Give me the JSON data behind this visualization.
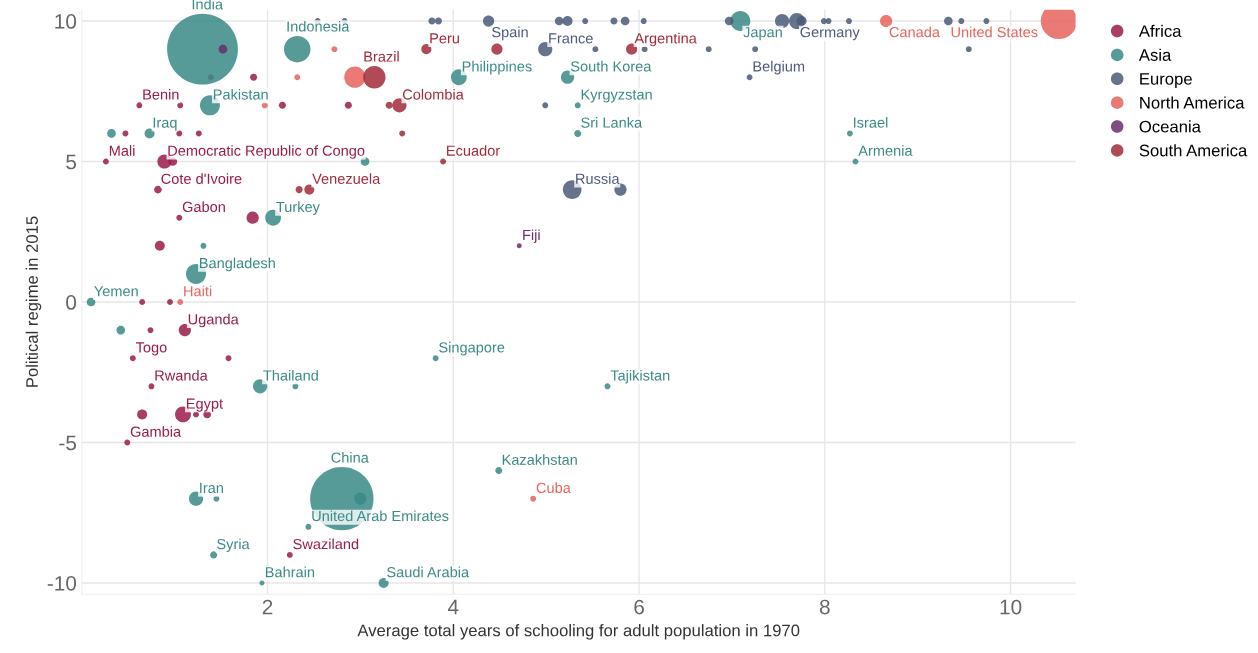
{
  "chart_data": {
    "type": "bubble",
    "xlabel": "Average total years of schooling for adult population in 1970",
    "ylabel": "Political regime in 2015",
    "xlim": [
      0,
      10.7
    ],
    "ylim": [
      -10.4,
      10.4
    ],
    "xticks": [
      2,
      4,
      6,
      8,
      10
    ],
    "yticks": [
      -10,
      -5,
      0,
      5,
      10
    ],
    "grid": true,
    "legend": "top right",
    "series": [
      {
        "name": "Africa",
        "color": "#9b1b4a",
        "x": [
          0.62,
          1.06,
          0.26,
          0.47,
          1.05,
          1.26,
          0.89,
          0.98,
          0.82,
          1.05,
          1.84,
          0.84,
          1.39,
          1.85,
          2.16,
          2.87,
          0.65,
          0.95,
          1.11,
          0.74,
          0.55,
          1.58,
          0.75,
          1.09,
          1.23,
          1.35,
          0.65,
          0.49,
          2.24
        ],
        "values": [
          7,
          7,
          5,
          6,
          6,
          6,
          5,
          5,
          4,
          3,
          3,
          2,
          8,
          8,
          7,
          7,
          0,
          0,
          -1,
          -1,
          -2,
          -2,
          -3,
          -4,
          -4,
          -4,
          -4,
          -5,
          -9
        ],
        "sizes": [
          0.007,
          0.007,
          0.007,
          0.007,
          0.007,
          0.007,
          0.04,
          0.015,
          0.012,
          0.007,
          0.03,
          0.02,
          0.007,
          0.01,
          0.01,
          0.01,
          0.007,
          0.007,
          0.03,
          0.007,
          0.007,
          0.007,
          0.007,
          0.05,
          0.007,
          0.012,
          0.02,
          0.007,
          0.007
        ]
      },
      {
        "name": "Asia",
        "color": "#3a8a87",
        "x": [
          1.3,
          2.32,
          1.38,
          0.73,
          0.32,
          4.06,
          5.23,
          5.34,
          5.34,
          8.27,
          8.33,
          7.09,
          3.05,
          2.06,
          1.23,
          1.31,
          0.1,
          0.42,
          3.81,
          1.92,
          2.3,
          5.66,
          4.49,
          2.8,
          3.0,
          1.23,
          1.45,
          2.44,
          1.42,
          1.94,
          3.25
        ],
        "values": [
          9,
          9,
          7,
          6,
          6,
          8,
          8,
          7,
          6,
          6,
          5,
          10,
          5,
          3,
          1,
          2,
          0,
          -1,
          -2,
          -3,
          -3,
          -3,
          -6,
          -7,
          -7,
          -7,
          -7,
          -8,
          -9,
          -10,
          -10
        ],
        "sizes": [
          1.0,
          0.14,
          0.08,
          0.02,
          0.015,
          0.05,
          0.035,
          0.007,
          0.01,
          0.007,
          0.007,
          0.08,
          0.015,
          0.05,
          0.08,
          0.007,
          0.015,
          0.015,
          0.007,
          0.04,
          0.007,
          0.007,
          0.01,
          0.8,
          0.03,
          0.04,
          0.007,
          0.007,
          0.01,
          0.005,
          0.02
        ]
      },
      {
        "name": "Europe",
        "color": "#4b5a78",
        "x": [
          2.54,
          2.83,
          3.77,
          3.84,
          4.38,
          5.14,
          5.23,
          5.42,
          5.73,
          5.85,
          6.05,
          6.97,
          7.54,
          7.7,
          7.75,
          7.99,
          8.04,
          8.26,
          9.33,
          9.47,
          9.74,
          4.99,
          5.53,
          6.06,
          6.75,
          7.25,
          9.55,
          7.19,
          4.99,
          5.28,
          5.8
        ],
        "values": [
          10,
          10,
          10,
          10,
          10,
          10,
          10,
          10,
          10,
          10,
          10,
          10,
          10,
          10,
          10,
          10,
          10,
          10,
          10,
          10,
          10,
          9,
          9,
          9,
          9,
          9,
          9,
          8,
          7,
          4,
          4
        ],
        "sizes": [
          0.007,
          0.007,
          0.01,
          0.01,
          0.025,
          0.015,
          0.02,
          0.007,
          0.01,
          0.015,
          0.007,
          0.015,
          0.04,
          0.05,
          0.02,
          0.007,
          0.007,
          0.007,
          0.015,
          0.007,
          0.007,
          0.04,
          0.007,
          0.007,
          0.007,
          0.007,
          0.007,
          0.007,
          0.007,
          0.07,
          0.03
        ]
      },
      {
        "name": "North America",
        "color": "#e8625d",
        "x": [
          8.66,
          10.52,
          1.06,
          4.86,
          2.94,
          1.97,
          2.72,
          2.32
        ],
        "values": [
          10,
          10,
          0,
          -7,
          8,
          7,
          9,
          8
        ],
        "sizes": [
          0.03,
          0.26,
          0.007,
          0.007,
          0.09,
          0.007,
          0.007,
          0.007
        ]
      },
      {
        "name": "Oceania",
        "color": "#6a2d6e",
        "x": [
          4.71,
          1.52
        ],
        "values": [
          2,
          9
        ],
        "sizes": [
          0.005,
          0.015
        ]
      },
      {
        "name": "South America",
        "color": "#a32a3a",
        "x": [
          3.15,
          3.42,
          3.31,
          3.71,
          5.92,
          3.89,
          2.45,
          2.34,
          4.47,
          3.45
        ],
        "values": [
          8,
          7,
          7,
          9,
          9,
          5,
          4,
          4,
          9,
          6
        ],
        "sizes": [
          0.1,
          0.04,
          0.01,
          0.02,
          0.025,
          0.007,
          0.02,
          0.01,
          0.025,
          0.007
        ]
      }
    ],
    "annotations": [
      {
        "text": "India",
        "x": 1.3,
        "y": 9
      },
      {
        "text": "Indonesia",
        "x": 2.32,
        "y": 9
      },
      {
        "text": "Peru",
        "x": 3.71,
        "y": 9
      },
      {
        "text": "Spain",
        "x": 4.38,
        "y": 10
      },
      {
        "text": "France",
        "x": 4.99,
        "y": 9
      },
      {
        "text": "Argentina",
        "x": 5.92,
        "y": 9
      },
      {
        "text": "Japan",
        "x": 7.09,
        "y": 10
      },
      {
        "text": "Germany",
        "x": 7.7,
        "y": 10
      },
      {
        "text": "Canada",
        "x": 8.66,
        "y": 10
      },
      {
        "text": "United States",
        "x": 10.52,
        "y": 10
      },
      {
        "text": "Brazil",
        "x": 3.15,
        "y": 8
      },
      {
        "text": "Philippines",
        "x": 4.06,
        "y": 8
      },
      {
        "text": "South Korea",
        "x": 5.23,
        "y": 8
      },
      {
        "text": "Belgium",
        "x": 7.19,
        "y": 8
      },
      {
        "text": "Benin",
        "x": 0.62,
        "y": 7
      },
      {
        "text": "Pakistan",
        "x": 1.38,
        "y": 7
      },
      {
        "text": "Colombia",
        "x": 3.42,
        "y": 7
      },
      {
        "text": "Kyrgyzstan",
        "x": 5.34,
        "y": 7
      },
      {
        "text": "Iraq",
        "x": 0.73,
        "y": 6
      },
      {
        "text": "Sri Lanka",
        "x": 5.34,
        "y": 6
      },
      {
        "text": "Israel",
        "x": 8.27,
        "y": 6
      },
      {
        "text": "Mali",
        "x": 0.26,
        "y": 5
      },
      {
        "text": "Democratic Republic of Congo",
        "x": 0.89,
        "y": 5
      },
      {
        "text": "Ecuador",
        "x": 3.89,
        "y": 5
      },
      {
        "text": "Armenia",
        "x": 8.33,
        "y": 5
      },
      {
        "text": "Cote d'Ivoire",
        "x": 0.82,
        "y": 4
      },
      {
        "text": "Venezuela",
        "x": 2.45,
        "y": 4
      },
      {
        "text": "Russia",
        "x": 5.28,
        "y": 4
      },
      {
        "text": "Gabon",
        "x": 1.05,
        "y": 3
      },
      {
        "text": "Turkey",
        "x": 2.06,
        "y": 3
      },
      {
        "text": "Fiji",
        "x": 4.71,
        "y": 2
      },
      {
        "text": "Bangladesh",
        "x": 1.23,
        "y": 1
      },
      {
        "text": "Yemen",
        "x": 0.1,
        "y": 0
      },
      {
        "text": "Haiti",
        "x": 1.06,
        "y": 0
      },
      {
        "text": "Uganda",
        "x": 1.11,
        "y": -1
      },
      {
        "text": "Togo",
        "x": 0.55,
        "y": -2
      },
      {
        "text": "Singapore",
        "x": 3.81,
        "y": -2
      },
      {
        "text": "Rwanda",
        "x": 0.75,
        "y": -3
      },
      {
        "text": "Thailand",
        "x": 1.92,
        "y": -3
      },
      {
        "text": "Tajikistan",
        "x": 5.66,
        "y": -3
      },
      {
        "text": "Egypt",
        "x": 1.09,
        "y": -4
      },
      {
        "text": "Gambia",
        "x": 0.49,
        "y": -5
      },
      {
        "text": "Kazakhstan",
        "x": 4.49,
        "y": -6
      },
      {
        "text": "China",
        "x": 2.8,
        "y": -7
      },
      {
        "text": "Iran",
        "x": 1.23,
        "y": -7
      },
      {
        "text": "Cuba",
        "x": 4.86,
        "y": -7
      },
      {
        "text": "United Arab Emirates",
        "x": 2.44,
        "y": -8
      },
      {
        "text": "Syria",
        "x": 1.42,
        "y": -9
      },
      {
        "text": "Swaziland",
        "x": 2.24,
        "y": -9
      },
      {
        "text": "Bahrain",
        "x": 1.94,
        "y": -10
      },
      {
        "text": "Saudi Arabia",
        "x": 3.25,
        "y": -10
      }
    ]
  }
}
